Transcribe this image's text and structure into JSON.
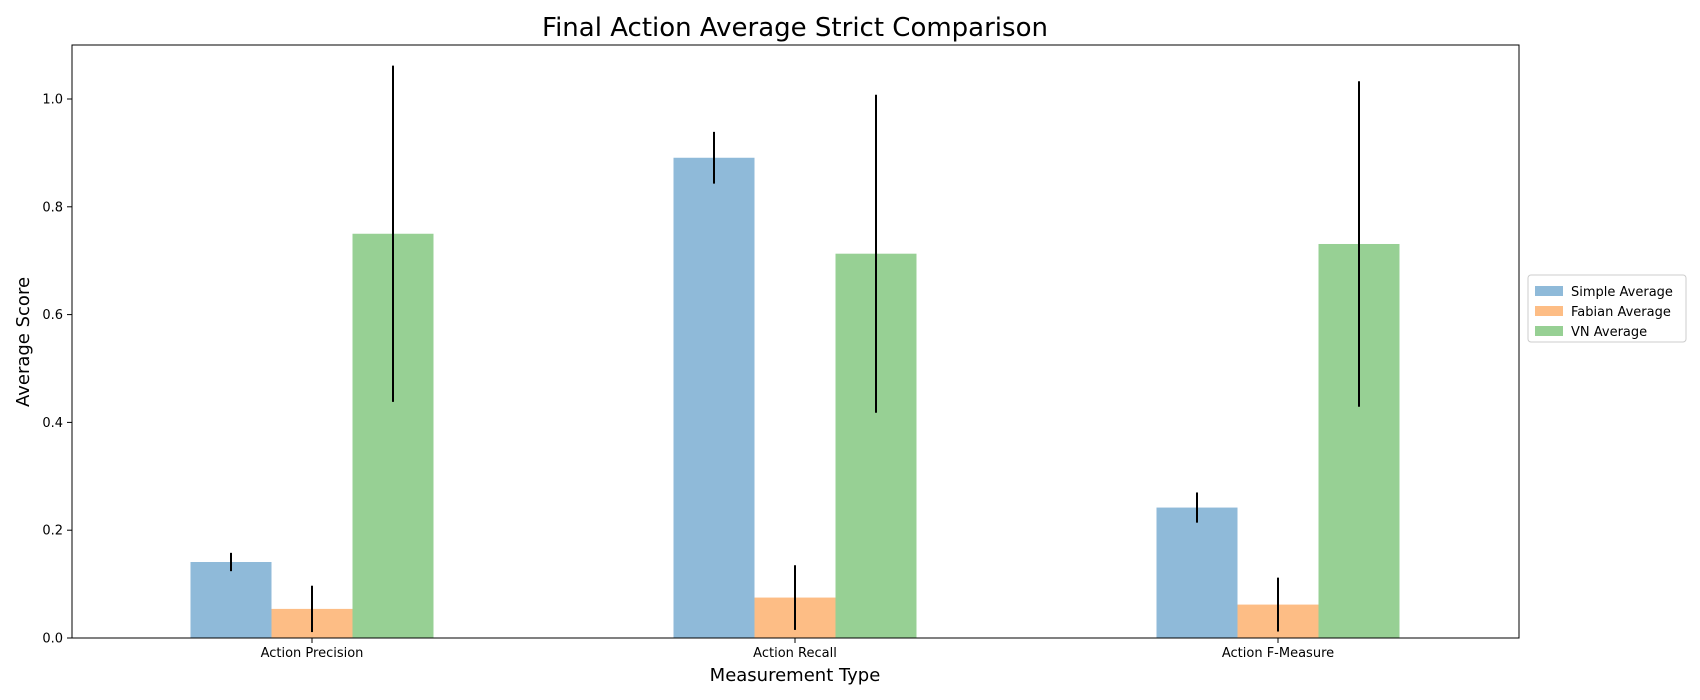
{
  "chart_data": {
    "type": "bar",
    "title": "Final Action Average Strict Comparison",
    "xlabel": "Measurement Type",
    "ylabel": "Average Score",
    "categories": [
      "Action Precision",
      "Action Recall",
      "Action F-Measure"
    ],
    "series": [
      {
        "name": "Simple Average",
        "color": "#8fbad9",
        "values": [
          0.141,
          0.891,
          0.242
        ],
        "errors": [
          0.017,
          0.048,
          0.028
        ]
      },
      {
        "name": "Fabian Average",
        "color": "#fdbd85",
        "values": [
          0.054,
          0.075,
          0.062
        ],
        "errors": [
          0.043,
          0.06,
          0.05
        ]
      },
      {
        "name": "VN Average",
        "color": "#97d094",
        "values": [
          0.75,
          0.713,
          0.731
        ],
        "errors": [
          0.312,
          0.295,
          0.302
        ]
      }
    ],
    "ylim": [
      0,
      1.1
    ],
    "yticks": [
      "0.0",
      "0.2",
      "0.4",
      "0.6",
      "0.8",
      "1.0"
    ],
    "grid": false,
    "legend_position": "right"
  }
}
